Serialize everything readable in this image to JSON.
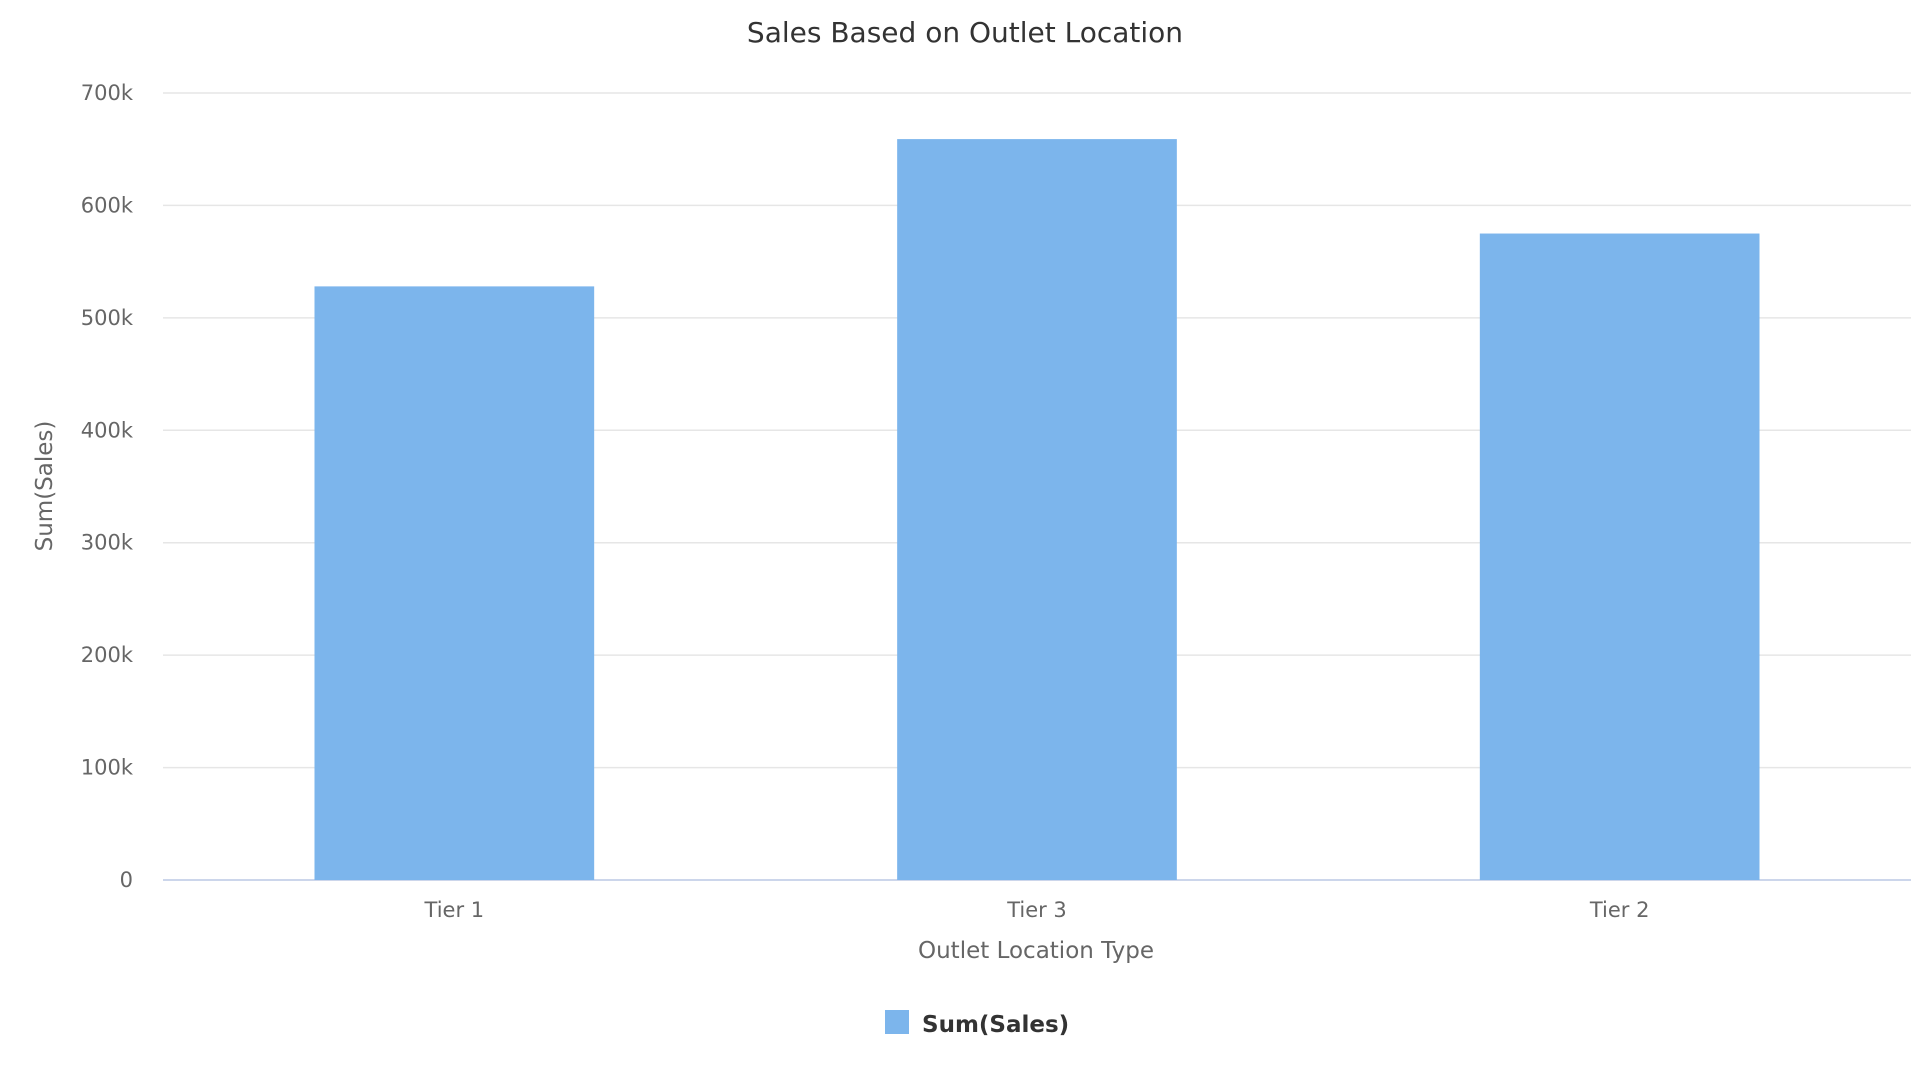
{
  "chart_data": {
    "type": "bar",
    "title": "Sales Based on Outlet Location",
    "xlabel": "Outlet Location Type",
    "ylabel": "Sum(Sales)",
    "categories": [
      "Tier 1",
      "Tier 3",
      "Tier 2"
    ],
    "series": [
      {
        "name": "Sum(Sales)",
        "values": [
          528000,
          659000,
          575000
        ],
        "color": "#7cb5ec"
      }
    ],
    "ylim": [
      0,
      700000
    ],
    "yticks": [
      0,
      100000,
      200000,
      300000,
      400000,
      500000,
      600000,
      700000
    ],
    "ytick_labels": [
      "0",
      "100k",
      "200k",
      "300k",
      "400k",
      "500k",
      "600k",
      "700k"
    ],
    "grid": true,
    "legend_position": "bottom-center"
  }
}
